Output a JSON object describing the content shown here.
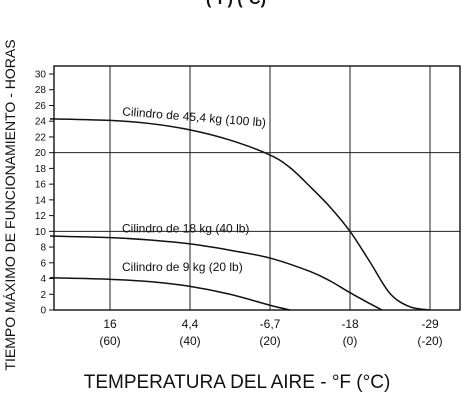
{
  "chart_data": {
    "type": "line",
    "title_fragment": "(°F) (°C)",
    "ylabel": "TIEMPO MÁXIMO DE FUNCIONAMIENTO - HORAS",
    "xlabel": "TEMPERATURA DEL AIRE - °F (°C)",
    "ylim": [
      0,
      30
    ],
    "yticks": [
      "0",
      "2",
      "4",
      "6",
      "8",
      "10",
      "12",
      "14",
      "16",
      "18",
      "20",
      "22",
      "24",
      "26",
      "28",
      "30"
    ],
    "xticks": [
      {
        "top": "16",
        "bottom": "(60)"
      },
      {
        "top": "4,4",
        "bottom": "(40)"
      },
      {
        "top": "-6,7",
        "bottom": "(20)"
      },
      {
        "top": "-18",
        "bottom": "(0)"
      },
      {
        "top": "-29",
        "bottom": "(-20)"
      }
    ],
    "x_positions_F": [
      60,
      40,
      20,
      0,
      -20
    ],
    "xlim_F": [
      75,
      -25
    ],
    "grid": {
      "horizontal_at": [
        10,
        20
      ],
      "vertical": true
    },
    "series": [
      {
        "name": "Cilindro de 45,4 kg (100 lb)",
        "x_F": [
          75,
          60,
          50,
          40,
          30,
          20,
          15,
          10,
          5,
          0,
          -5,
          -10,
          -15,
          -20
        ],
        "y": [
          24.3,
          24.1,
          23.7,
          22.9,
          21.6,
          19.7,
          18.1,
          15.7,
          13.1,
          10.0,
          6.1,
          2.1,
          0.4,
          0.0
        ]
      },
      {
        "name": "Cilindro de 18 kg (40 lb)",
        "x_F": [
          75,
          60,
          50,
          40,
          30,
          20,
          10,
          5,
          0,
          -5,
          -8
        ],
        "y": [
          9.4,
          9.2,
          8.9,
          8.4,
          7.6,
          6.6,
          4.9,
          3.7,
          2.2,
          0.8,
          0.0
        ]
      },
      {
        "name": "Cilindro de 9 kg (20 lb)",
        "x_F": [
          75,
          60,
          50,
          40,
          30,
          20,
          15
        ],
        "y": [
          4.1,
          3.9,
          3.6,
          3.0,
          2.0,
          0.6,
          0.0
        ]
      }
    ]
  }
}
